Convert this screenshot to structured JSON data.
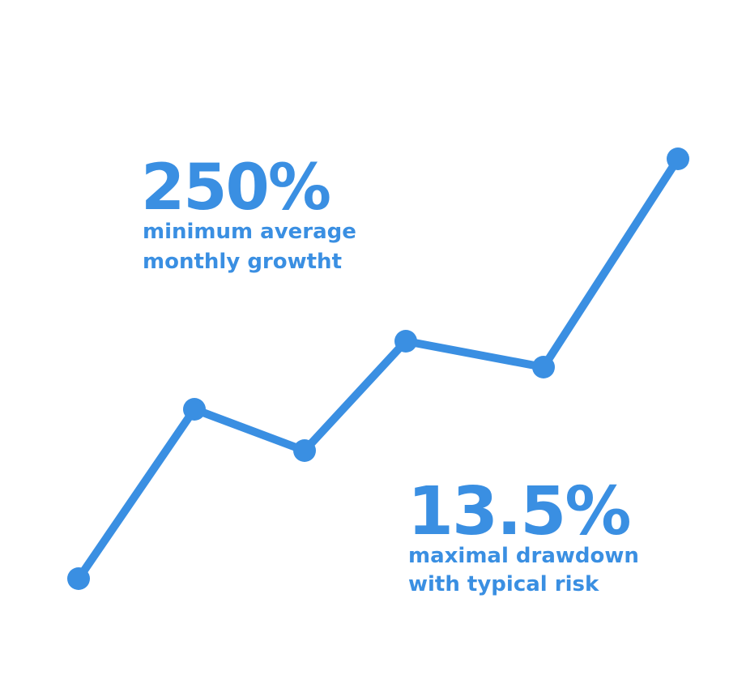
{
  "stats": [
    {
      "value": "250%",
      "lines": [
        "minimum average",
        "monthly growtht"
      ]
    },
    {
      "value": "13.5%",
      "lines": [
        "maximal drawdown",
        "with typical risk"
      ]
    }
  ]
}
